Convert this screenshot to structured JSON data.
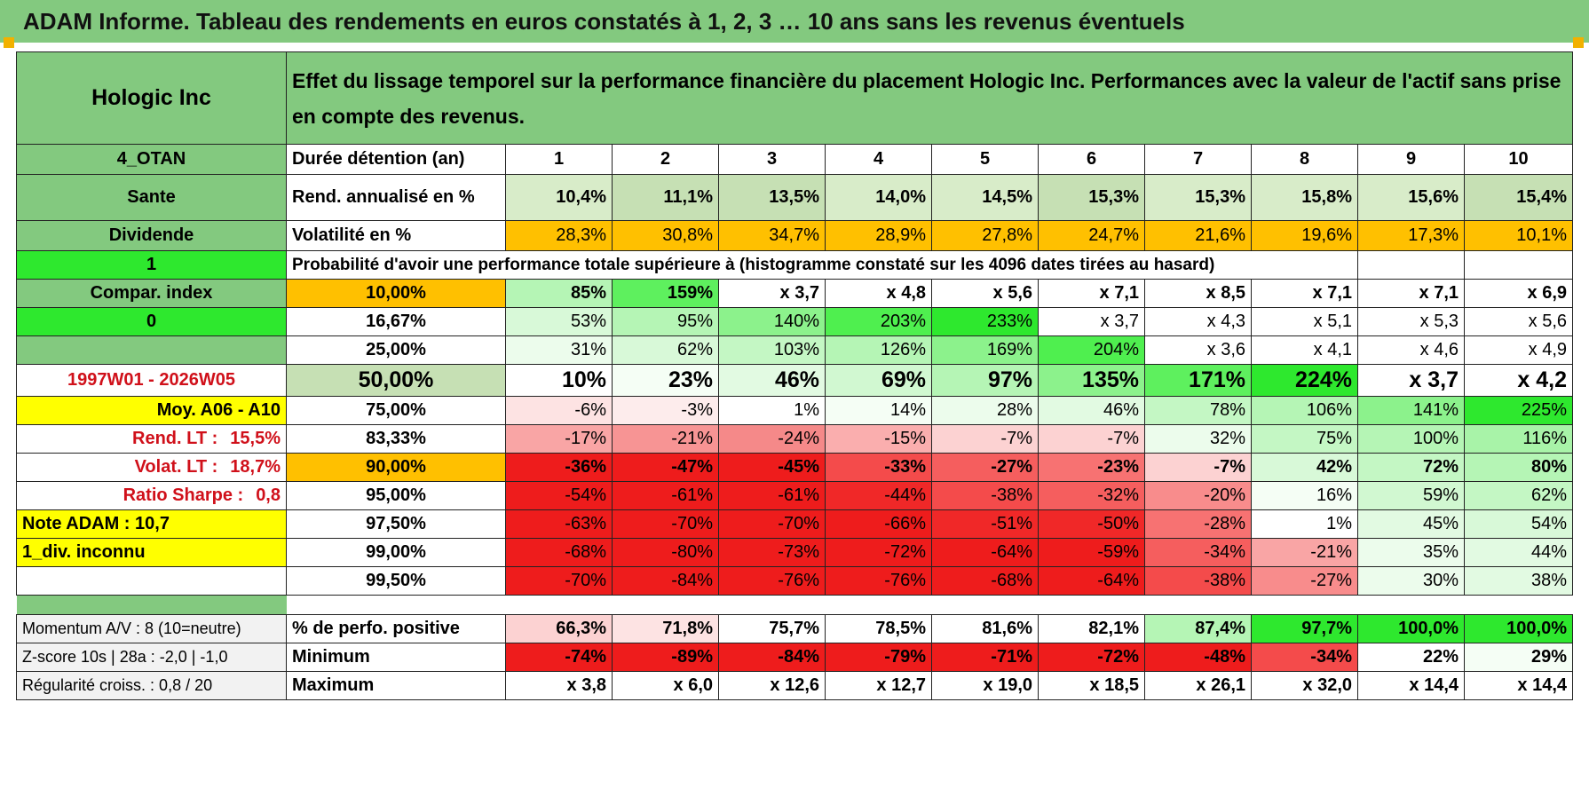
{
  "title": "ADAM Informe. Tableau des rendements en euros constatés à 1, 2, 3 … 10 ans sans les revenus éventuels",
  "colors": {
    "header_green": "#83c97f",
    "bright_green": "#2ee82e",
    "light_green": "#c6e0b4",
    "orange": "#ffc000",
    "yellow": "#ffff00",
    "red_text": "#d0101a"
  },
  "header": {
    "name": "Hologic Inc",
    "description": "Effet du lissage temporel sur la performance financière du placement Hologic Inc. Performances avec la valeur de l'actif sans prise en compte des revenus."
  },
  "side": {
    "code": "4_OTAN",
    "sector": "Sante",
    "dividend": "Dividende",
    "one": "1",
    "compar_index": "Compar. index",
    "zero": "0",
    "period": "1997W01 - 2026W05",
    "moy": "Moy. A06 - A10",
    "rend_lt_label": "Rend. LT :",
    "rend_lt_value": "15,5%",
    "volat_lt_label": "Volat. LT :",
    "volat_lt_value": "18,7%",
    "sharpe_label": "Ratio Sharpe :",
    "sharpe_value": "0,8",
    "note": "Note ADAM : 10,7",
    "div_inconnu": "1_div. inconnu"
  },
  "labels": {
    "duration": "Durée détention (an)",
    "rendement": "Rend. annualisé en %",
    "volatilite": "Volatilité en %",
    "probability": "Probabilité d'avoir une performance totale supérieure à (histogramme constaté sur les 4096 dates tirées au hasard)"
  },
  "years": [
    "1",
    "2",
    "3",
    "4",
    "5",
    "6",
    "7",
    "8",
    "9",
    "10"
  ],
  "rendement": [
    "10,4%",
    "11,1%",
    "13,5%",
    "14,0%",
    "14,5%",
    "15,3%",
    "15,3%",
    "15,8%",
    "15,6%",
    "15,4%"
  ],
  "volatilite": [
    "28,3%",
    "30,8%",
    "34,7%",
    "28,9%",
    "27,8%",
    "24,7%",
    "21,6%",
    "19,6%",
    "17,3%",
    "10,1%"
  ],
  "quantiles": [
    {
      "p": "10,00%",
      "values": [
        "85%",
        "159%",
        "x 3,7",
        "x 4,8",
        "x 5,6",
        "x 7,1",
        "x 8,5",
        "x 7,1",
        "x 7,1",
        "x 6,9"
      ]
    },
    {
      "p": "16,67%",
      "values": [
        "53%",
        "95%",
        "140%",
        "203%",
        "233%",
        "x 3,7",
        "x 4,3",
        "x 5,1",
        "x 5,3",
        "x 5,6"
      ]
    },
    {
      "p": "25,00%",
      "values": [
        "31%",
        "62%",
        "103%",
        "126%",
        "169%",
        "204%",
        "x 3,6",
        "x 4,1",
        "x 4,6",
        "x 4,9"
      ]
    },
    {
      "p": "50,00%",
      "values": [
        "10%",
        "23%",
        "46%",
        "69%",
        "97%",
        "135%",
        "171%",
        "224%",
        "x 3,7",
        "x 4,2"
      ]
    },
    {
      "p": "75,00%",
      "values": [
        "-6%",
        "-3%",
        "1%",
        "14%",
        "28%",
        "46%",
        "78%",
        "106%",
        "141%",
        "225%"
      ]
    },
    {
      "p": "83,33%",
      "values": [
        "-17%",
        "-21%",
        "-24%",
        "-15%",
        "-7%",
        "-7%",
        "32%",
        "75%",
        "100%",
        "116%"
      ]
    },
    {
      "p": "90,00%",
      "values": [
        "-36%",
        "-47%",
        "-45%",
        "-33%",
        "-27%",
        "-23%",
        "-7%",
        "42%",
        "72%",
        "80%"
      ]
    },
    {
      "p": "95,00%",
      "values": [
        "-54%",
        "-61%",
        "-61%",
        "-44%",
        "-38%",
        "-32%",
        "-20%",
        "16%",
        "59%",
        "62%"
      ]
    },
    {
      "p": "97,50%",
      "values": [
        "-63%",
        "-70%",
        "-70%",
        "-66%",
        "-51%",
        "-50%",
        "-28%",
        "1%",
        "45%",
        "54%"
      ]
    },
    {
      "p": "99,00%",
      "values": [
        "-68%",
        "-80%",
        "-73%",
        "-72%",
        "-64%",
        "-59%",
        "-34%",
        "-21%",
        "35%",
        "44%"
      ]
    },
    {
      "p": "99,50%",
      "values": [
        "-70%",
        "-84%",
        "-76%",
        "-76%",
        "-68%",
        "-64%",
        "-38%",
        "-27%",
        "30%",
        "38%"
      ]
    }
  ],
  "bottom": [
    {
      "side": "Momentum A/V : 8 (10=neutre)",
      "label": "% de perfo. positive",
      "values": [
        "66,3%",
        "71,8%",
        "75,7%",
        "78,5%",
        "81,6%",
        "82,1%",
        "87,4%",
        "97,7%",
        "100,0%",
        "100,0%"
      ]
    },
    {
      "side": "Z-score 10s | 28a : -2,0 | -1,0",
      "label": "Minimum",
      "values": [
        "-74%",
        "-89%",
        "-84%",
        "-79%",
        "-71%",
        "-72%",
        "-48%",
        "-34%",
        "22%",
        "29%"
      ]
    },
    {
      "side": "Régularité croiss. : 0,8 / 20",
      "label": "Maximum",
      "values": [
        "x 3,8",
        "x 6,0",
        "x 12,6",
        "x 12,7",
        "x 19,0",
        "x 18,5",
        "x 26,1",
        "x 32,0",
        "x 14,4",
        "x 14,4"
      ]
    }
  ]
}
